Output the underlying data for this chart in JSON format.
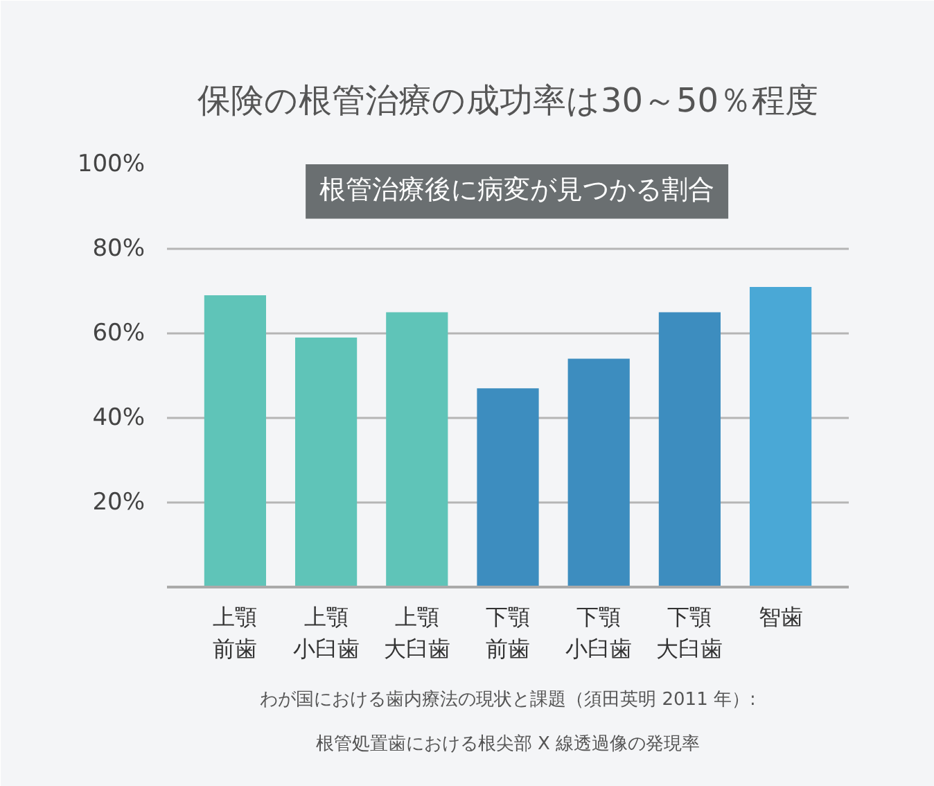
{
  "chart_data": {
    "type": "bar",
    "title": "保険の根管治療の成功率は30～50％程度",
    "subtitle": "根管治療後に病変が見つかる割合",
    "categories": [
      "上顎前歯",
      "上顎小臼歯",
      "上顎大臼歯",
      "下顎前歯",
      "下顎小臼歯",
      "下顎大臼歯",
      "智歯"
    ],
    "values": [
      69,
      59,
      65,
      47,
      54,
      65,
      71
    ],
    "colors": [
      "#5fc4b8",
      "#5fc4b8",
      "#5fc4b8",
      "#3d8dbf",
      "#3d8dbf",
      "#3d8dbf",
      "#4aa8d6"
    ],
    "ylim": [
      0,
      100
    ],
    "yticks": [
      {
        "value": 20,
        "label": "20%"
      },
      {
        "value": 40,
        "label": "40%"
      },
      {
        "value": 60,
        "label": "60%"
      },
      {
        "value": 80,
        "label": "80%"
      },
      {
        "value": 100,
        "label": "100%"
      }
    ],
    "grid": "y",
    "annotations": [
      "わが国における歯内療法の現状と課題（須田英明 2011 年）:",
      "根管処置歯における根尖部 X 線透過像の発現率"
    ]
  }
}
